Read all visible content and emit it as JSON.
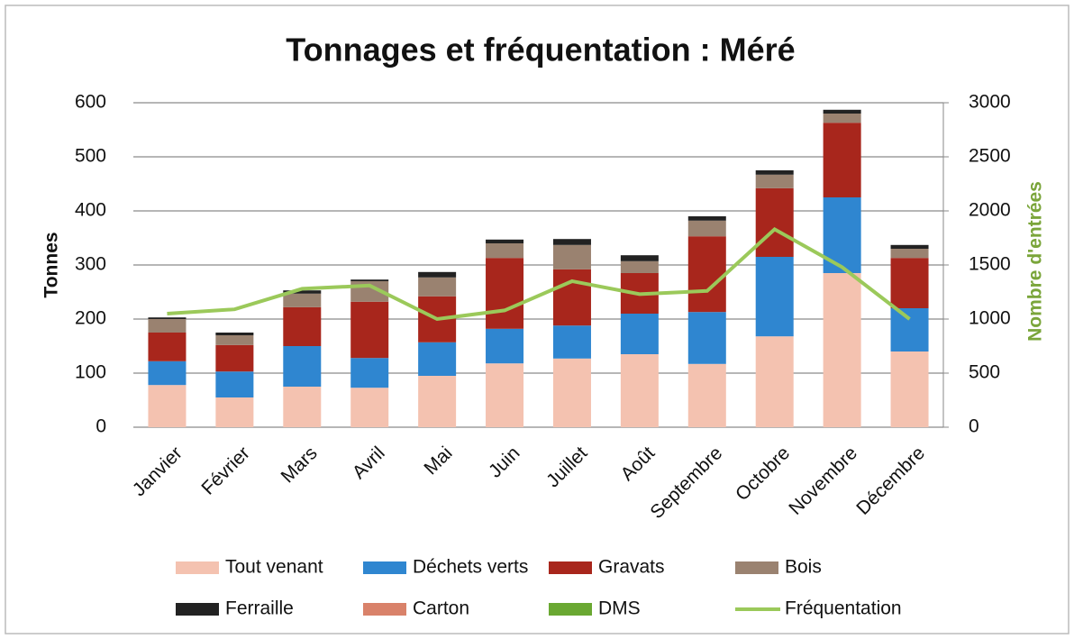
{
  "chart_data": {
    "type": "bar",
    "stacked": true,
    "title": "Tonnages et fréquentation : Méré",
    "y_label": "Tonnes",
    "y2_label": "Nombre d'entrées",
    "y2_label_color": "#7aa53a",
    "categories": [
      "Janvier",
      "Février",
      "Mars",
      "Avril",
      "Mai",
      "Juin",
      "Juillet",
      "Août",
      "Septembre",
      "Octobre",
      "Novembre",
      "Décembre"
    ],
    "series": [
      {
        "name": "Tout venant",
        "color": "#f4c2b0",
        "values": [
          78,
          55,
          75,
          73,
          95,
          118,
          127,
          135,
          117,
          168,
          285,
          140
        ]
      },
      {
        "name": "Déchets verts",
        "color": "#2f86d0",
        "values": [
          44,
          48,
          75,
          55,
          62,
          64,
          61,
          75,
          96,
          147,
          140,
          80
        ]
      },
      {
        "name": "Gravats",
        "color": "#a8261c",
        "values": [
          53,
          49,
          72,
          104,
          85,
          131,
          104,
          75,
          140,
          127,
          138,
          93
        ]
      },
      {
        "name": "Bois",
        "color": "#9a8270",
        "values": [
          25,
          18,
          25,
          38,
          35,
          27,
          45,
          22,
          29,
          25,
          17,
          17
        ]
      },
      {
        "name": "Ferraille",
        "color": "#222222",
        "values": [
          3,
          5,
          6,
          3,
          10,
          7,
          11,
          11,
          8,
          8,
          7,
          7
        ]
      },
      {
        "name": "Carton",
        "color": "#d9826a",
        "values": [
          0,
          0,
          0,
          0,
          0,
          0,
          0,
          0,
          0,
          0,
          0,
          0
        ]
      },
      {
        "name": "DMS",
        "color": "#6aa832",
        "values": [
          0,
          0,
          0,
          0,
          0,
          0,
          0,
          0,
          0,
          0,
          0,
          0
        ]
      },
      {
        "name": "Fréquentation",
        "color": "#9bc95a",
        "axis": "y2",
        "type": "line",
        "values": [
          1050,
          1090,
          1280,
          1310,
          1000,
          1080,
          1350,
          1230,
          1260,
          1830,
          1480,
          1000
        ]
      }
    ],
    "ylim": [
      0,
      600
    ],
    "yticks": [
      0,
      100,
      200,
      300,
      400,
      500,
      600
    ],
    "y2lim": [
      0,
      3000
    ],
    "y2ticks": [
      0,
      500,
      1000,
      1500,
      2000,
      2500,
      3000
    ],
    "grid": true,
    "legend": "bottom"
  }
}
